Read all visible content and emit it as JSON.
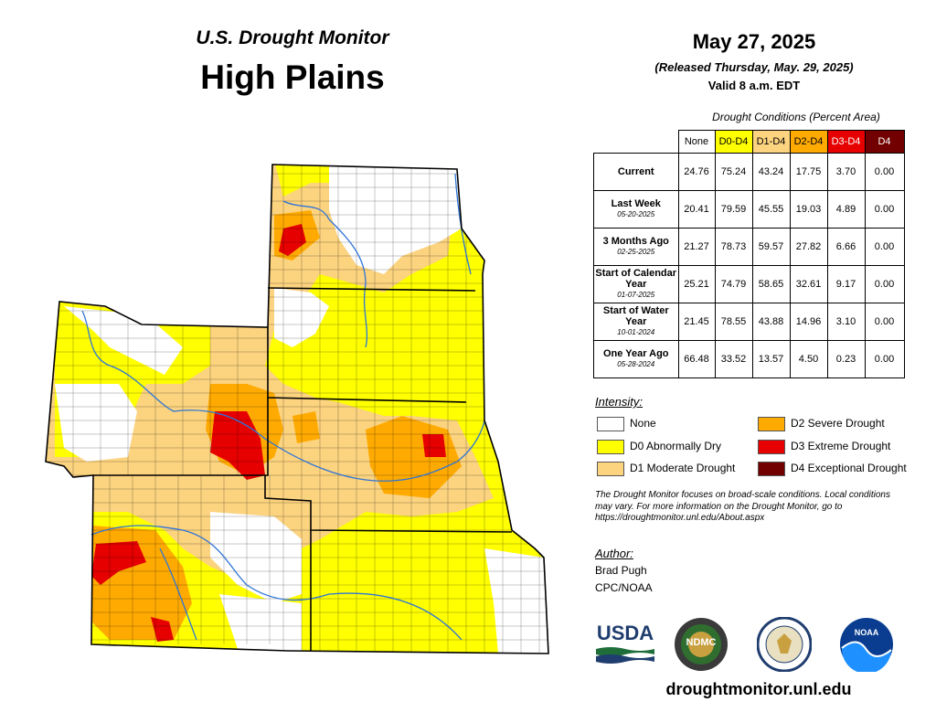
{
  "header": {
    "subtitle": "U.S. Drought Monitor",
    "region": "High Plains"
  },
  "date_block": {
    "date": "May 27, 2025",
    "released": "(Released Thursday, May. 29, 2025)",
    "valid": "Valid 8 a.m. EDT"
  },
  "table": {
    "caption": "Drought Conditions (Percent Area)",
    "columns": [
      "None",
      "D0-D4",
      "D1-D4",
      "D2-D4",
      "D3-D4",
      "D4"
    ],
    "column_colors": [
      "#ffffff",
      "#ffff00",
      "#fcd37f",
      "#ffaa00",
      "#e60000",
      "#730000"
    ],
    "rows": [
      {
        "label": "Current",
        "date": "",
        "values": [
          "24.76",
          "75.24",
          "43.24",
          "17.75",
          "3.70",
          "0.00"
        ]
      },
      {
        "label": "Last Week",
        "date": "05-20-2025",
        "values": [
          "20.41",
          "79.59",
          "45.55",
          "19.03",
          "4.89",
          "0.00"
        ]
      },
      {
        "label": "3 Months Ago",
        "date": "02-25-2025",
        "values": [
          "21.27",
          "78.73",
          "59.57",
          "27.82",
          "6.66",
          "0.00"
        ]
      },
      {
        "label": "Start of Calendar Year",
        "date": "01-07-2025",
        "values": [
          "25.21",
          "74.79",
          "58.65",
          "32.61",
          "9.17",
          "0.00"
        ]
      },
      {
        "label": "Start of Water Year",
        "date": "10-01-2024",
        "values": [
          "21.45",
          "78.55",
          "43.88",
          "14.96",
          "3.10",
          "0.00"
        ]
      },
      {
        "label": "One Year Ago",
        "date": "05-28-2024",
        "values": [
          "66.48",
          "33.52",
          "13.57",
          "4.50",
          "0.23",
          "0.00"
        ]
      }
    ]
  },
  "legend": {
    "title": "Intensity:",
    "items": [
      {
        "label": "None",
        "color": "#ffffff"
      },
      {
        "label": "D0 Abnormally Dry",
        "color": "#ffff00"
      },
      {
        "label": "D1 Moderate Drought",
        "color": "#fcd37f"
      },
      {
        "label": "D2 Severe Drought",
        "color": "#ffaa00"
      },
      {
        "label": "D3 Extreme Drought",
        "color": "#e60000"
      },
      {
        "label": "D4 Exceptional Drought",
        "color": "#730000"
      }
    ]
  },
  "note": "The Drought Monitor focuses on broad-scale conditions. Local conditions may vary. For more information on the Drought Monitor, go to https://droughtmonitor.unl.edu/About.aspx",
  "author": {
    "title": "Author:",
    "name": "Brad Pugh",
    "org": "CPC/NOAA"
  },
  "logos": {
    "usda": "USDA",
    "ndmc": "NDMC",
    "noaa": "NOAA"
  },
  "website": "droughtmonitor.unl.edu"
}
